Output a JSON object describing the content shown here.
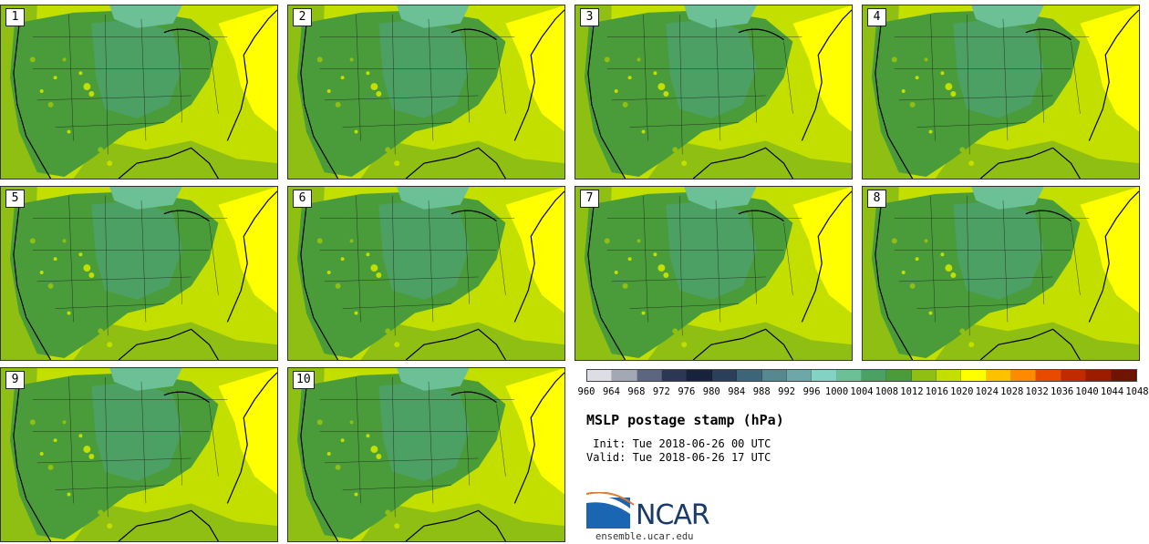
{
  "panels": [
    "1",
    "2",
    "3",
    "4",
    "5",
    "6",
    "7",
    "8",
    "9",
    "10"
  ],
  "colorbar": {
    "levels": [
      "960",
      "964",
      "968",
      "972",
      "976",
      "980",
      "984",
      "988",
      "992",
      "996",
      "1000",
      "1004",
      "1008",
      "1012",
      "1016",
      "1020",
      "1024",
      "1028",
      "1032",
      "1036",
      "1040",
      "1044",
      "1048"
    ],
    "colors": [
      "#dcdee3",
      "#a3a8b5",
      "#5d6680",
      "#2c3754",
      "#17223d",
      "#2b3f5b",
      "#3d6578",
      "#55888f",
      "#6ea7a8",
      "#82d3c3",
      "#6cc095",
      "#4da064",
      "#4a9c3a",
      "#8fbf12",
      "#c3df00",
      "#ffff00",
      "#ffc000",
      "#ff8a00",
      "#e84a00",
      "#c22a00",
      "#9c1c00",
      "#6e1400"
    ]
  },
  "title": "MSLP postage stamp (hPa)",
  "init": " Init: Tue 2018-06-26 00 UTC",
  "valid": "Valid: Tue 2018-06-26 17 UTC",
  "logo": {
    "text": "NCAR",
    "url": "ensemble.ucar.edu"
  },
  "palette": {
    "ocean_east": "#c3df00",
    "ocean_gulf": "#8fbf12",
    "high_pressure": "#ffff00",
    "land_mid": "#4a9c3a",
    "land_low": "#4da064",
    "north_low": "#6cc095"
  }
}
